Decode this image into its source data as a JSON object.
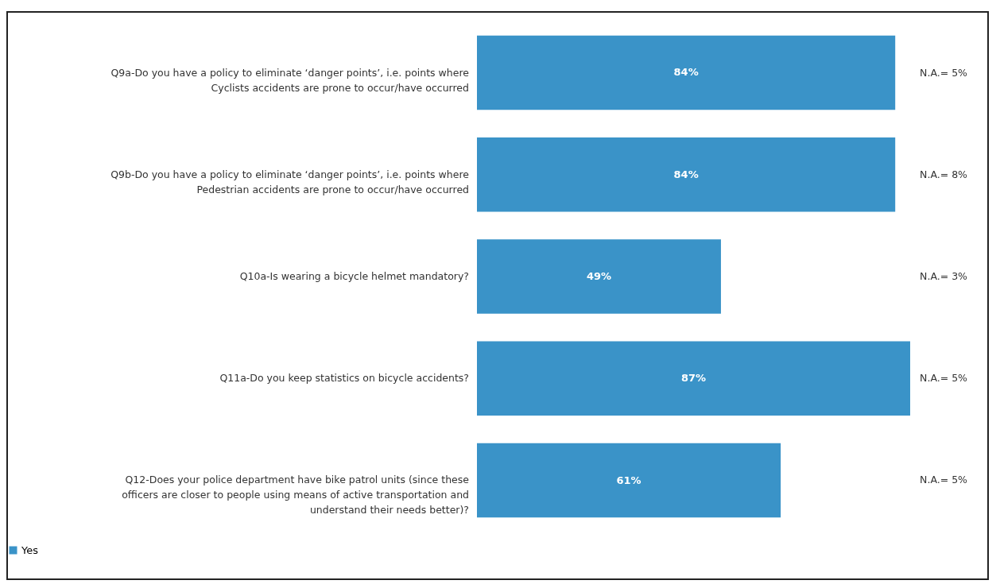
{
  "chart_data": {
    "type": "bar",
    "orientation": "horizontal",
    "legend": "bottom",
    "categories": [
      "Q9a-Do you have a policy to eliminate ‘danger points’, i.e. points where Cyclists accidents are prone to occur/have occurred",
      "Q9b-Do you have a policy to eliminate ‘danger points’, i.e. points where Pedestrian accidents are prone to occur/have occurred",
      "Q10a-Is wearing a bicycle helmet mandatory?",
      "Q11a-Do you keep statistics on bicycle accidents?",
      "Q12-Does your police department have bike patrol units (since these officers are closer to people using means of active transportation and understand their needs better)?"
    ],
    "series": [
      {
        "name": "Yes",
        "color": "#3a93c8",
        "values": [
          84,
          84,
          49,
          87,
          61
        ],
        "value_labels": [
          "84%",
          "84%",
          "49%",
          "87%",
          "61%"
        ]
      }
    ],
    "annotations": [
      "N.A.= 5%",
      "N.A.= 8%",
      "N.A.= 3%",
      "N.A.= 5%",
      "N.A.= 5%"
    ]
  }
}
